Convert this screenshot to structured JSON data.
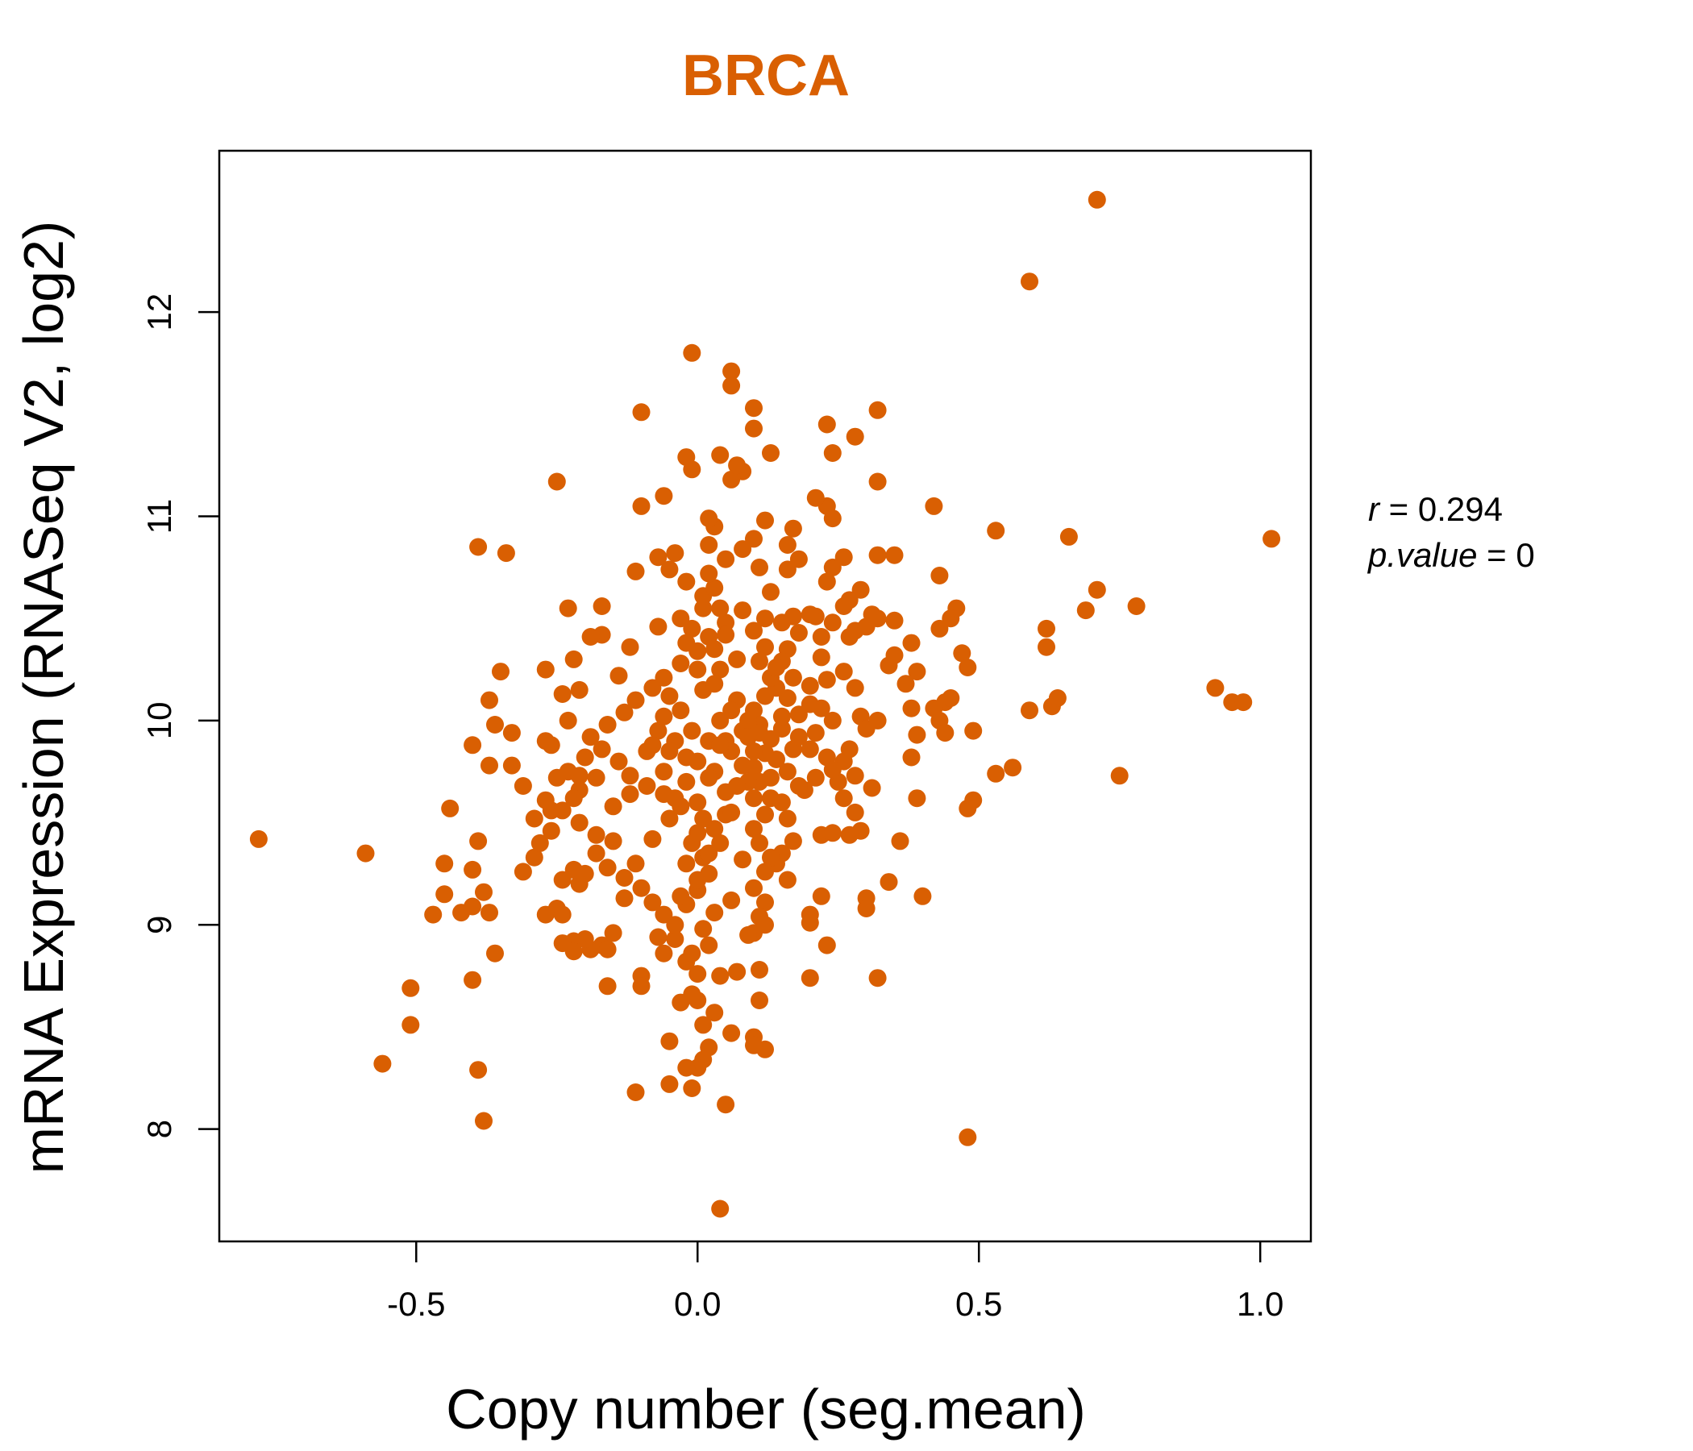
{
  "colors": {
    "accent": "#d95f02",
    "axis": "#000000",
    "background": "#ffffff"
  },
  "chart_data": {
    "type": "scatter",
    "title": "BRCA",
    "xlabel": "Copy number (seg.mean)",
    "ylabel": "mRNA Expression (RNASeq V2, log2)",
    "xlim": [
      -0.85,
      1.09
    ],
    "ylim": [
      7.45,
      12.79
    ],
    "xticks": [
      -0.5,
      0.0,
      0.5,
      1.0
    ],
    "xtick_labels": [
      "-0.5",
      "0.0",
      "0.5",
      "1.0"
    ],
    "yticks": [
      8,
      9,
      10,
      11,
      12
    ],
    "ytick_labels": [
      "8",
      "9",
      "10",
      "11",
      "12"
    ],
    "grid": false,
    "legend": "none",
    "annotation": {
      "r_label": "r",
      "r_value": "0.294",
      "p_label": "p.value",
      "p_value": "0"
    },
    "points": [
      [
        0.71,
        12.55
      ],
      [
        0.59,
        12.15
      ],
      [
        1.02,
        10.89
      ],
      [
        0.71,
        10.64
      ],
      [
        0.78,
        10.56
      ],
      [
        0.69,
        10.54
      ],
      [
        0.66,
        10.9
      ],
      [
        0.62,
        10.45
      ],
      [
        0.62,
        10.36
      ],
      [
        0.63,
        10.07
      ],
      [
        0.64,
        10.11
      ],
      [
        0.59,
        10.05
      ],
      [
        0.53,
        10.93
      ],
      [
        0.92,
        10.16
      ],
      [
        0.95,
        10.09
      ],
      [
        0.97,
        10.09
      ],
      [
        0.75,
        9.73
      ],
      [
        0.56,
        9.77
      ],
      [
        0.53,
        9.74
      ],
      [
        0.49,
        9.61
      ],
      [
        0.48,
        9.57
      ],
      [
        0.49,
        9.95
      ],
      [
        0.48,
        7.96
      ],
      [
        0.42,
        11.05
      ],
      [
        0.43,
        10.71
      ],
      [
        0.46,
        10.55
      ],
      [
        0.45,
        10.5
      ],
      [
        0.47,
        10.33
      ],
      [
        0.48,
        10.26
      ],
      [
        0.43,
        10.45
      ],
      [
        0.44,
        10.09
      ],
      [
        0.45,
        10.11
      ],
      [
        0.42,
        10.06
      ],
      [
        0.43,
        10.0
      ],
      [
        0.44,
        9.94
      ],
      [
        0.35,
        10.81
      ],
      [
        0.35,
        10.49
      ],
      [
        0.34,
        10.27
      ],
      [
        0.35,
        10.32
      ],
      [
        0.38,
        10.38
      ],
      [
        0.39,
        10.24
      ],
      [
        0.37,
        10.18
      ],
      [
        0.38,
        10.06
      ],
      [
        0.39,
        9.93
      ],
      [
        0.38,
        9.82
      ],
      [
        0.39,
        9.62
      ],
      [
        0.36,
        9.41
      ],
      [
        0.34,
        9.21
      ],
      [
        0.4,
        9.14
      ],
      [
        0.32,
        11.52
      ],
      [
        0.32,
        11.17
      ],
      [
        0.28,
        11.39
      ],
      [
        0.32,
        10.81
      ],
      [
        0.31,
        10.52
      ],
      [
        0.32,
        10.5
      ],
      [
        0.29,
        10.64
      ],
      [
        0.27,
        10.59
      ],
      [
        0.26,
        10.56
      ],
      [
        0.28,
        10.44
      ],
      [
        0.3,
        10.46
      ],
      [
        0.27,
        10.41
      ],
      [
        0.26,
        10.24
      ],
      [
        0.28,
        10.16
      ],
      [
        0.29,
        10.02
      ],
      [
        0.3,
        9.96
      ],
      [
        0.32,
        10.0
      ],
      [
        0.27,
        9.86
      ],
      [
        0.26,
        9.8
      ],
      [
        0.28,
        9.73
      ],
      [
        0.31,
        9.67
      ],
      [
        0.26,
        9.62
      ],
      [
        0.28,
        9.55
      ],
      [
        0.29,
        9.46
      ],
      [
        0.27,
        9.44
      ],
      [
        0.25,
        9.7
      ],
      [
        0.3,
        9.13
      ],
      [
        0.3,
        9.08
      ],
      [
        0.32,
        8.74
      ],
      [
        0.23,
        8.9
      ],
      [
        0.2,
        8.74
      ],
      [
        0.23,
        11.45
      ],
      [
        0.24,
        11.31
      ],
      [
        0.23,
        11.05
      ],
      [
        0.24,
        10.99
      ],
      [
        0.21,
        11.09
      ],
      [
        0.26,
        10.8
      ],
      [
        0.24,
        10.75
      ],
      [
        0.23,
        10.68
      ],
      [
        0.21,
        10.51
      ],
      [
        0.22,
        10.41
      ],
      [
        0.24,
        10.48
      ],
      [
        0.2,
        10.52
      ],
      [
        0.22,
        10.31
      ],
      [
        0.23,
        10.2
      ],
      [
        0.2,
        10.17
      ],
      [
        0.22,
        10.06
      ],
      [
        0.24,
        10.0
      ],
      [
        0.21,
        9.94
      ],
      [
        0.2,
        9.86
      ],
      [
        0.23,
        9.82
      ],
      [
        0.24,
        9.76
      ],
      [
        0.19,
        9.66
      ],
      [
        0.22,
        9.44
      ],
      [
        0.24,
        9.45
      ],
      [
        0.2,
        9.05
      ],
      [
        0.2,
        9.01
      ],
      [
        0.22,
        9.14
      ],
      [
        0.16,
        10.86
      ],
      [
        0.17,
        10.94
      ],
      [
        0.18,
        10.79
      ],
      [
        0.16,
        10.74
      ],
      [
        0.17,
        10.51
      ],
      [
        0.15,
        10.48
      ],
      [
        0.18,
        10.43
      ],
      [
        0.16,
        10.35
      ],
      [
        0.15,
        10.29
      ],
      [
        0.17,
        10.21
      ],
      [
        0.14,
        10.16
      ],
      [
        0.16,
        10.11
      ],
      [
        0.18,
        10.03
      ],
      [
        0.15,
        9.96
      ],
      [
        0.17,
        9.86
      ],
      [
        0.14,
        9.81
      ],
      [
        0.16,
        9.75
      ],
      [
        0.18,
        9.68
      ],
      [
        0.15,
        9.6
      ],
      [
        0.17,
        9.41
      ],
      [
        0.15,
        9.35
      ],
      [
        0.14,
        9.3
      ],
      [
        0.16,
        9.22
      ],
      [
        0.13,
        11.31
      ],
      [
        0.1,
        11.53
      ],
      [
        0.1,
        11.43
      ],
      [
        0.06,
        11.71
      ],
      [
        0.06,
        11.64
      ],
      [
        0.04,
        11.3
      ],
      [
        0.06,
        11.18
      ],
      [
        0.08,
        11.22
      ],
      [
        0.07,
        11.25
      ],
      [
        0.12,
        10.98
      ],
      [
        0.1,
        10.89
      ],
      [
        0.11,
        10.75
      ],
      [
        0.13,
        10.63
      ],
      [
        0.12,
        10.5
      ],
      [
        0.1,
        10.44
      ],
      [
        0.12,
        10.36
      ],
      [
        0.11,
        10.29
      ],
      [
        0.13,
        10.21
      ],
      [
        0.12,
        10.12
      ],
      [
        0.1,
        10.05
      ],
      [
        0.11,
        9.98
      ],
      [
        0.13,
        9.91
      ],
      [
        0.12,
        9.84
      ],
      [
        0.1,
        9.77
      ],
      [
        0.11,
        9.7
      ],
      [
        0.13,
        9.62
      ],
      [
        0.12,
        9.54
      ],
      [
        0.1,
        9.47
      ],
      [
        0.11,
        9.4
      ],
      [
        0.13,
        9.33
      ],
      [
        0.12,
        9.26
      ],
      [
        0.1,
        9.18
      ],
      [
        0.12,
        9.11
      ],
      [
        0.11,
        9.04
      ],
      [
        0.1,
        8.96
      ],
      [
        0.12,
        9.0
      ],
      [
        0.09,
        8.95
      ],
      [
        0.11,
        8.78
      ],
      [
        0.07,
        8.77
      ],
      [
        0.04,
        8.75
      ],
      [
        0.11,
        8.63
      ],
      [
        0.06,
        8.47
      ],
      [
        0.1,
        8.45
      ],
      [
        0.12,
        8.39
      ],
      [
        0.1,
        8.41
      ],
      [
        0.03,
        8.57
      ],
      [
        0.02,
        8.4
      ],
      [
        0.01,
        8.34
      ],
      [
        0.0,
        8.3
      ],
      [
        -0.02,
        8.3
      ],
      [
        0.05,
        8.12
      ],
      [
        -0.01,
        8.2
      ],
      [
        -0.05,
        8.22
      ],
      [
        -0.11,
        8.18
      ],
      [
        -0.05,
        8.43
      ],
      [
        0.04,
        7.61
      ],
      [
        0.0,
        8.63
      ],
      [
        0.01,
        8.51
      ],
      [
        -0.01,
        8.66
      ],
      [
        -0.03,
        8.62
      ],
      [
        0.0,
        8.76
      ],
      [
        -0.02,
        8.82
      ],
      [
        0.02,
        8.9
      ],
      [
        -0.04,
        8.93
      ],
      [
        -0.06,
        8.86
      ],
      [
        -0.07,
        8.94
      ],
      [
        -0.1,
        8.75
      ],
      [
        -0.1,
        8.7
      ],
      [
        -0.16,
        8.7
      ],
      [
        -0.13,
        9.13
      ],
      [
        -0.15,
        8.96
      ],
      [
        -0.17,
        8.9
      ],
      [
        -0.16,
        8.88
      ],
      [
        -0.19,
        8.88
      ],
      [
        -0.2,
        8.93
      ],
      [
        -0.22,
        8.92
      ],
      [
        -0.24,
        8.91
      ],
      [
        -0.22,
        8.87
      ],
      [
        -0.25,
        9.08
      ],
      [
        -0.27,
        9.05
      ],
      [
        -0.24,
        9.05
      ],
      [
        -0.21,
        9.2
      ],
      [
        -0.24,
        9.22
      ],
      [
        -0.22,
        9.27
      ],
      [
        -0.2,
        9.25
      ],
      [
        -0.31,
        9.26
      ],
      [
        -0.29,
        9.33
      ],
      [
        -0.28,
        9.4
      ],
      [
        -0.26,
        9.46
      ],
      [
        -0.29,
        9.52
      ],
      [
        -0.26,
        9.56
      ],
      [
        -0.27,
        9.61
      ],
      [
        -0.31,
        9.68
      ],
      [
        -0.33,
        9.78
      ],
      [
        -0.37,
        9.78
      ],
      [
        -0.4,
        9.88
      ],
      [
        -0.36,
        9.98
      ],
      [
        -0.33,
        9.94
      ],
      [
        -0.26,
        9.88
      ],
      [
        -0.27,
        9.9
      ],
      [
        -0.23,
        9.75
      ],
      [
        -0.21,
        9.73
      ],
      [
        -0.21,
        9.66
      ],
      [
        -0.24,
        9.56
      ],
      [
        -0.21,
        9.5
      ],
      [
        -0.18,
        9.44
      ],
      [
        -0.15,
        9.41
      ],
      [
        -0.18,
        9.35
      ],
      [
        -0.16,
        9.28
      ],
      [
        -0.13,
        9.23
      ],
      [
        -0.11,
        9.3
      ],
      [
        -0.1,
        9.18
      ],
      [
        -0.08,
        9.11
      ],
      [
        -0.06,
        9.05
      ],
      [
        -0.04,
        9.0
      ],
      [
        -0.02,
        9.1
      ],
      [
        0.0,
        9.17
      ],
      [
        0.02,
        9.25
      ],
      [
        0.01,
        9.33
      ],
      [
        -0.01,
        9.4
      ],
      [
        0.03,
        9.47
      ],
      [
        0.05,
        9.54
      ],
      [
        -0.03,
        9.58
      ],
      [
        -0.06,
        9.64
      ],
      [
        -0.09,
        9.68
      ],
      [
        -0.12,
        9.73
      ],
      [
        -0.14,
        9.8
      ],
      [
        -0.17,
        9.86
      ],
      [
        -0.19,
        9.92
      ],
      [
        -0.16,
        9.98
      ],
      [
        -0.13,
        10.04
      ],
      [
        -0.11,
        10.1
      ],
      [
        -0.08,
        10.16
      ],
      [
        -0.06,
        10.21
      ],
      [
        -0.03,
        10.28
      ],
      [
        0.0,
        10.34
      ],
      [
        0.02,
        10.41
      ],
      [
        0.05,
        10.48
      ],
      [
        0.04,
        10.55
      ],
      [
        0.01,
        10.61
      ],
      [
        -0.02,
        10.68
      ],
      [
        -0.05,
        10.74
      ],
      [
        -0.07,
        10.8
      ],
      [
        0.02,
        10.86
      ],
      [
        0.03,
        10.95
      ],
      [
        0.02,
        10.99
      ],
      [
        0.05,
        10.79
      ],
      [
        0.08,
        10.84
      ],
      [
        -0.04,
        10.82
      ],
      [
        -0.06,
        11.1
      ],
      [
        -0.02,
        11.29
      ],
      [
        -0.01,
        11.23
      ],
      [
        -0.1,
        11.51
      ],
      [
        -0.01,
        11.8
      ],
      [
        -0.25,
        11.17
      ],
      [
        -0.1,
        11.05
      ],
      [
        -0.11,
        10.73
      ],
      [
        -0.17,
        10.56
      ],
      [
        -0.23,
        10.55
      ],
      [
        -0.22,
        10.3
      ],
      [
        -0.17,
        10.42
      ],
      [
        -0.19,
        10.41
      ],
      [
        -0.21,
        10.15
      ],
      [
        -0.24,
        10.13
      ],
      [
        -0.34,
        10.82
      ],
      [
        -0.39,
        10.85
      ],
      [
        -0.35,
        10.24
      ],
      [
        -0.37,
        10.1
      ],
      [
        -0.27,
        10.25
      ],
      [
        -0.23,
        10.0
      ],
      [
        -0.44,
        9.57
      ],
      [
        -0.45,
        9.3
      ],
      [
        -0.39,
        9.41
      ],
      [
        -0.4,
        9.27
      ],
      [
        -0.38,
        9.16
      ],
      [
        -0.4,
        9.09
      ],
      [
        -0.42,
        9.06
      ],
      [
        -0.37,
        9.06
      ],
      [
        -0.36,
        8.86
      ],
      [
        -0.4,
        8.73
      ],
      [
        -0.51,
        8.69
      ],
      [
        -0.51,
        8.51
      ],
      [
        -0.56,
        8.32
      ],
      [
        -0.39,
        8.29
      ],
      [
        -0.38,
        8.04
      ],
      [
        -0.59,
        9.35
      ],
      [
        -0.78,
        9.42
      ],
      [
        -0.45,
        9.15
      ],
      [
        -0.47,
        9.05
      ],
      [
        0.0,
        9.8
      ],
      [
        0.02,
        9.9
      ],
      [
        0.04,
        10.0
      ],
      [
        -0.02,
        9.7
      ],
      [
        0.06,
        9.85
      ],
      [
        0.08,
        9.95
      ],
      [
        -0.04,
        9.9
      ],
      [
        0.03,
        9.75
      ],
      [
        0.05,
        9.65
      ],
      [
        -0.03,
        10.05
      ],
      [
        0.07,
        10.1
      ],
      [
        0.09,
        10.0
      ],
      [
        0.01,
        10.15
      ],
      [
        -0.05,
        9.85
      ],
      [
        0.1,
        9.85
      ],
      [
        0.06,
        9.55
      ],
      [
        0.0,
        9.6
      ],
      [
        -0.06,
        9.75
      ],
      [
        0.04,
        10.25
      ],
      [
        -0.01,
        10.45
      ],
      [
        0.03,
        10.35
      ],
      [
        0.07,
        10.3
      ],
      [
        0.09,
        9.7
      ],
      [
        -0.07,
        9.95
      ],
      [
        0.0,
        9.45
      ],
      [
        0.02,
        9.35
      ],
      [
        0.04,
        9.4
      ],
      [
        -0.02,
        9.3
      ],
      [
        0.01,
        10.55
      ],
      [
        0.03,
        10.65
      ],
      [
        -0.03,
        10.5
      ],
      [
        0.05,
        9.9
      ],
      [
        0.08,
        9.78
      ],
      [
        -0.08,
        9.88
      ],
      [
        0.02,
        9.72
      ],
      [
        -0.01,
        9.95
      ],
      [
        0.06,
        10.05
      ],
      [
        -0.04,
        9.62
      ],
      [
        0.0,
        10.25
      ],
      [
        0.03,
        10.18
      ],
      [
        -0.05,
        10.12
      ],
      [
        0.07,
        9.68
      ],
      [
        0.01,
        9.52
      ],
      [
        -0.02,
        9.82
      ],
      [
        0.04,
        9.88
      ],
      [
        0.09,
        9.92
      ],
      [
        -0.06,
        10.02
      ],
      [
        0.11,
        9.94
      ],
      [
        -0.09,
        9.85
      ],
      [
        0.02,
        10.72
      ],
      [
        -0.02,
        10.38
      ],
      [
        0.05,
        10.42
      ],
      [
        0.08,
        10.54
      ],
      [
        -0.07,
        10.46
      ],
      [
        0.0,
        9.22
      ],
      [
        -0.03,
        9.14
      ],
      [
        0.03,
        9.06
      ],
      [
        0.01,
        8.98
      ],
      [
        -0.01,
        8.86
      ],
      [
        0.06,
        9.12
      ],
      [
        0.08,
        9.32
      ],
      [
        -0.08,
        9.42
      ],
      [
        -0.05,
        9.52
      ],
      [
        0.1,
        9.62
      ],
      [
        -0.12,
        9.64
      ],
      [
        0.13,
        9.72
      ],
      [
        -0.14,
        10.22
      ],
      [
        0.14,
        10.26
      ],
      [
        -0.12,
        10.36
      ],
      [
        0.15,
        10.02
      ],
      [
        -0.15,
        9.58
      ],
      [
        0.16,
        9.52
      ],
      [
        -0.18,
        9.72
      ],
      [
        0.18,
        9.92
      ],
      [
        -0.2,
        9.82
      ],
      [
        0.2,
        10.08
      ],
      [
        -0.22,
        9.62
      ],
      [
        0.21,
        9.72
      ],
      [
        -0.25,
        9.72
      ]
    ]
  }
}
